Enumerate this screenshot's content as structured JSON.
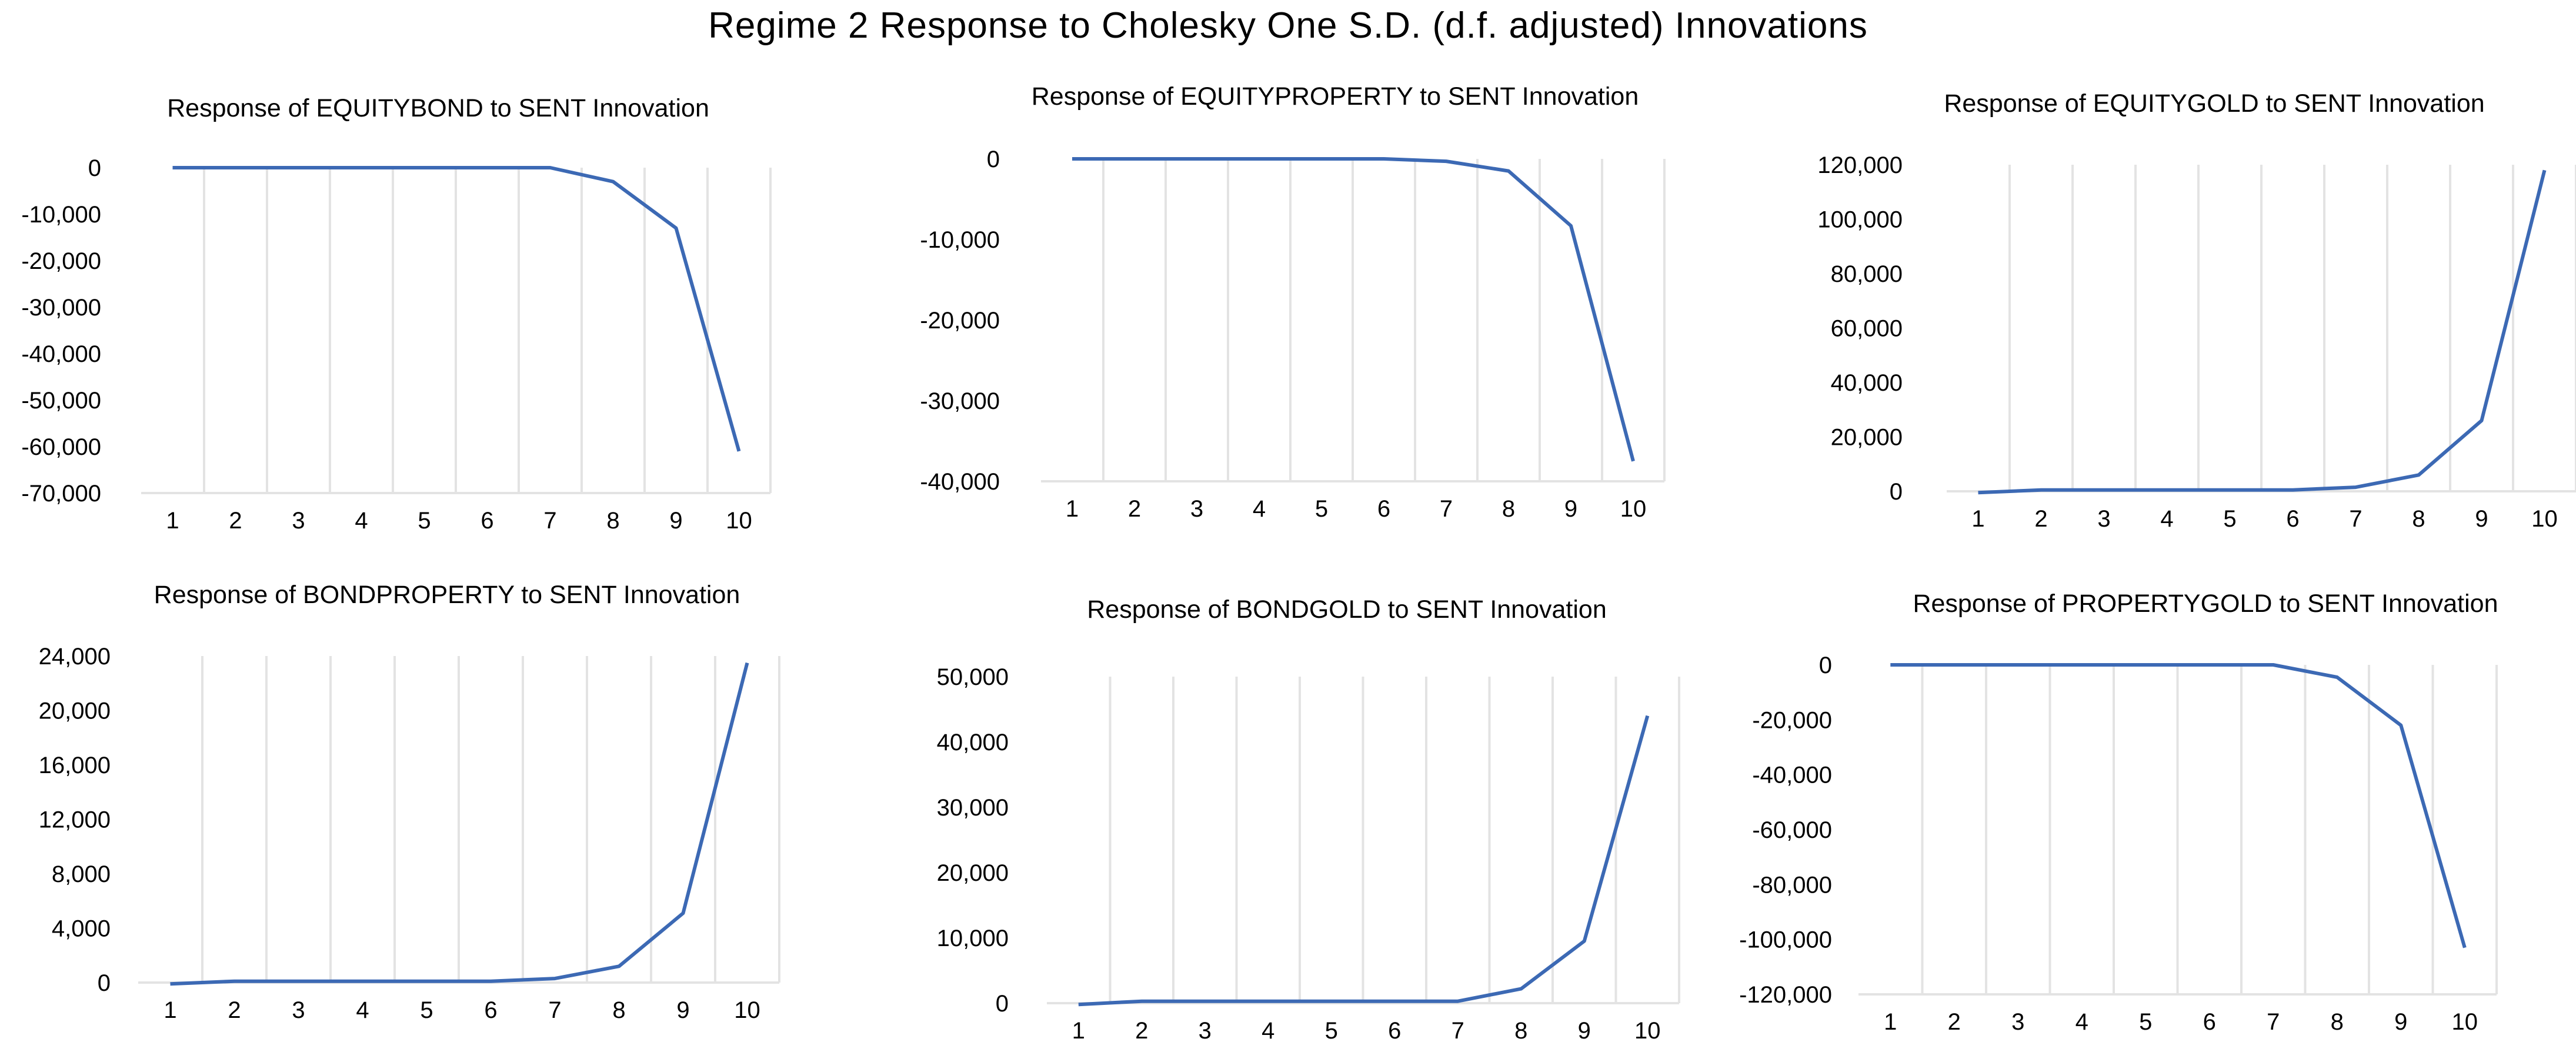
{
  "title": "Regime 2 Response to Cholesky One S.D. (d.f. adjusted) Innovations",
  "colors": {
    "line": "#3C69B4",
    "grid": "#E3E3E3",
    "text": "#000000"
  },
  "chart_data": [
    {
      "type": "line",
      "title": "Response of EQUITYBOND to SENT Innovation",
      "categories": [
        "1",
        "2",
        "3",
        "4",
        "5",
        "6",
        "7",
        "8",
        "9",
        "10"
      ],
      "values": [
        0,
        0,
        0,
        0,
        0,
        0,
        0,
        -3000,
        -13000,
        -61000
      ],
      "ylim": [
        -70000,
        0
      ],
      "yticks": [
        0,
        -10000,
        -20000,
        -30000,
        -40000,
        -50000,
        -60000,
        -70000
      ],
      "ytick_labels": [
        "0",
        "-10,000",
        "-20,000",
        "-30,000",
        "-40,000",
        "-50,000",
        "-60,000",
        "-70,000"
      ],
      "xlabel": "",
      "ylabel": "",
      "grid": "vertical"
    },
    {
      "type": "line",
      "title": "Response of EQUITYPROPERTY to SENT Innovation",
      "categories": [
        "1",
        "2",
        "3",
        "4",
        "5",
        "6",
        "7",
        "8",
        "9",
        "10"
      ],
      "values": [
        0,
        0,
        0,
        0,
        0,
        0,
        -300,
        -1500,
        -8300,
        -37500
      ],
      "ylim": [
        -40000,
        0
      ],
      "yticks": [
        0,
        -10000,
        -20000,
        -30000,
        -40000
      ],
      "ytick_labels": [
        "0",
        "-10,000",
        "-20,000",
        "-30,000",
        "-40,000"
      ],
      "xlabel": "",
      "ylabel": "",
      "grid": "vertical"
    },
    {
      "type": "line",
      "title": "Response of EQUITYGOLD to SENT Innovation",
      "categories": [
        "1",
        "2",
        "3",
        "4",
        "5",
        "6",
        "7",
        "8",
        "9",
        "10"
      ],
      "values": [
        -500,
        500,
        500,
        500,
        500,
        500,
        1500,
        6000,
        26000,
        118000
      ],
      "ylim": [
        0,
        120000
      ],
      "yticks": [
        0,
        20000,
        40000,
        60000,
        80000,
        100000,
        120000
      ],
      "ytick_labels": [
        "0",
        "20,000",
        "40,000",
        "60,000",
        "80,000",
        "100,000",
        "120,000"
      ],
      "xlabel": "",
      "ylabel": "",
      "grid": "vertical"
    },
    {
      "type": "line",
      "title": "Response of BONDPROPERTY to SENT Innovation",
      "categories": [
        "1",
        "2",
        "3",
        "4",
        "5",
        "6",
        "7",
        "8",
        "9",
        "10"
      ],
      "values": [
        -100,
        100,
        100,
        100,
        100,
        100,
        300,
        1200,
        5100,
        23500
      ],
      "ylim": [
        0,
        24000
      ],
      "yticks": [
        0,
        4000,
        8000,
        12000,
        16000,
        20000,
        24000
      ],
      "ytick_labels": [
        "0",
        "4,000",
        "8,000",
        "12,000",
        "16,000",
        "20,000",
        "24,000"
      ],
      "xlabel": "",
      "ylabel": "",
      "grid": "vertical"
    },
    {
      "type": "line",
      "title": "Response of BONDGOLD to SENT Innovation",
      "categories": [
        "1",
        "2",
        "3",
        "4",
        "5",
        "6",
        "7",
        "8",
        "9",
        "10"
      ],
      "values": [
        -200,
        300,
        300,
        300,
        300,
        300,
        300,
        2200,
        9500,
        44000
      ],
      "ylim": [
        0,
        50000
      ],
      "yticks": [
        0,
        10000,
        20000,
        30000,
        40000,
        50000
      ],
      "ytick_labels": [
        "0",
        "10,000",
        "20,000",
        "30,000",
        "40,000",
        "50,000"
      ],
      "xlabel": "",
      "ylabel": "",
      "grid": "vertical"
    },
    {
      "type": "line",
      "title": "Response of PROPERTYGOLD to SENT Innovation",
      "categories": [
        "1",
        "2",
        "3",
        "4",
        "5",
        "6",
        "7",
        "8",
        "9",
        "10"
      ],
      "values": [
        0,
        0,
        0,
        0,
        0,
        0,
        0,
        -4500,
        -22000,
        -103000
      ],
      "ylim": [
        -120000,
        0
      ],
      "yticks": [
        0,
        -20000,
        -40000,
        -60000,
        -80000,
        -100000,
        -120000
      ],
      "ytick_labels": [
        "0",
        "-20,000",
        "-40,000",
        "-60,000",
        "-80,000",
        "-100,000",
        "-120,000"
      ],
      "xlabel": "",
      "ylabel": "",
      "grid": "vertical"
    }
  ]
}
